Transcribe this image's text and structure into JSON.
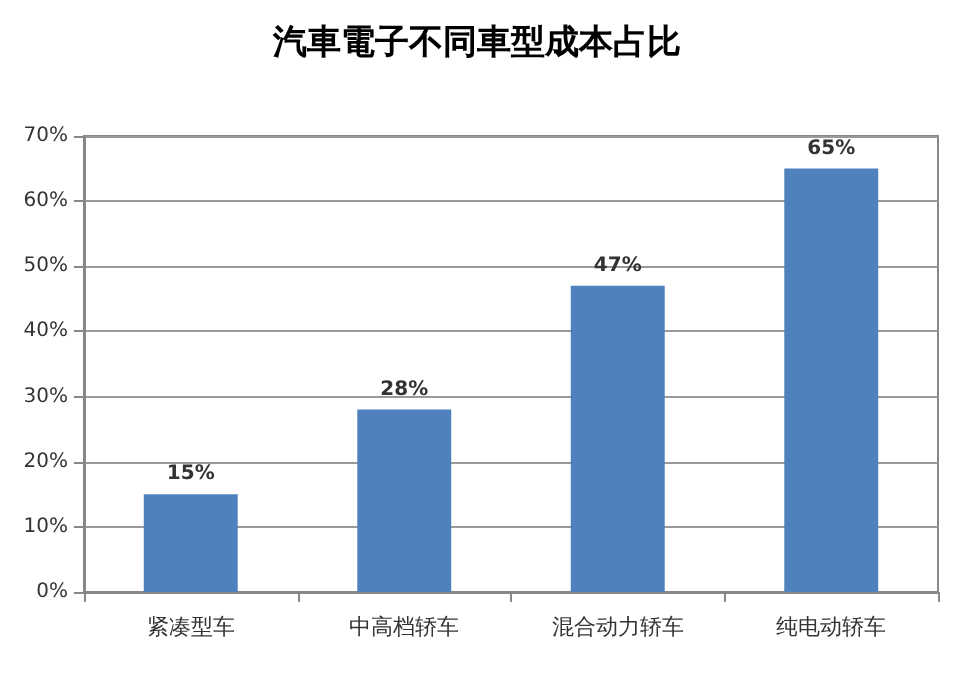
{
  "chart_data": {
    "type": "bar",
    "title": "汽車電子不同車型成本占比",
    "categories": [
      "紧凑型车",
      "中高档轿车",
      "混合动力轿车",
      "纯电动轿车"
    ],
    "values": [
      15,
      28,
      47,
      65
    ],
    "color": "#4f81bd",
    "value_labels": [
      "15%",
      "28%",
      "47%",
      "65%"
    ],
    "ylim": [
      0,
      70
    ],
    "yticks": [
      {
        "value": 0,
        "label": "0%"
      },
      {
        "value": 10,
        "label": "10%"
      },
      {
        "value": 20,
        "label": "20%"
      },
      {
        "value": 30,
        "label": "30%"
      },
      {
        "value": 40,
        "label": "40%"
      },
      {
        "value": 50,
        "label": "50%"
      },
      {
        "value": 60,
        "label": "60%"
      },
      {
        "value": 70,
        "label": "70%"
      }
    ],
    "grid": "y"
  }
}
